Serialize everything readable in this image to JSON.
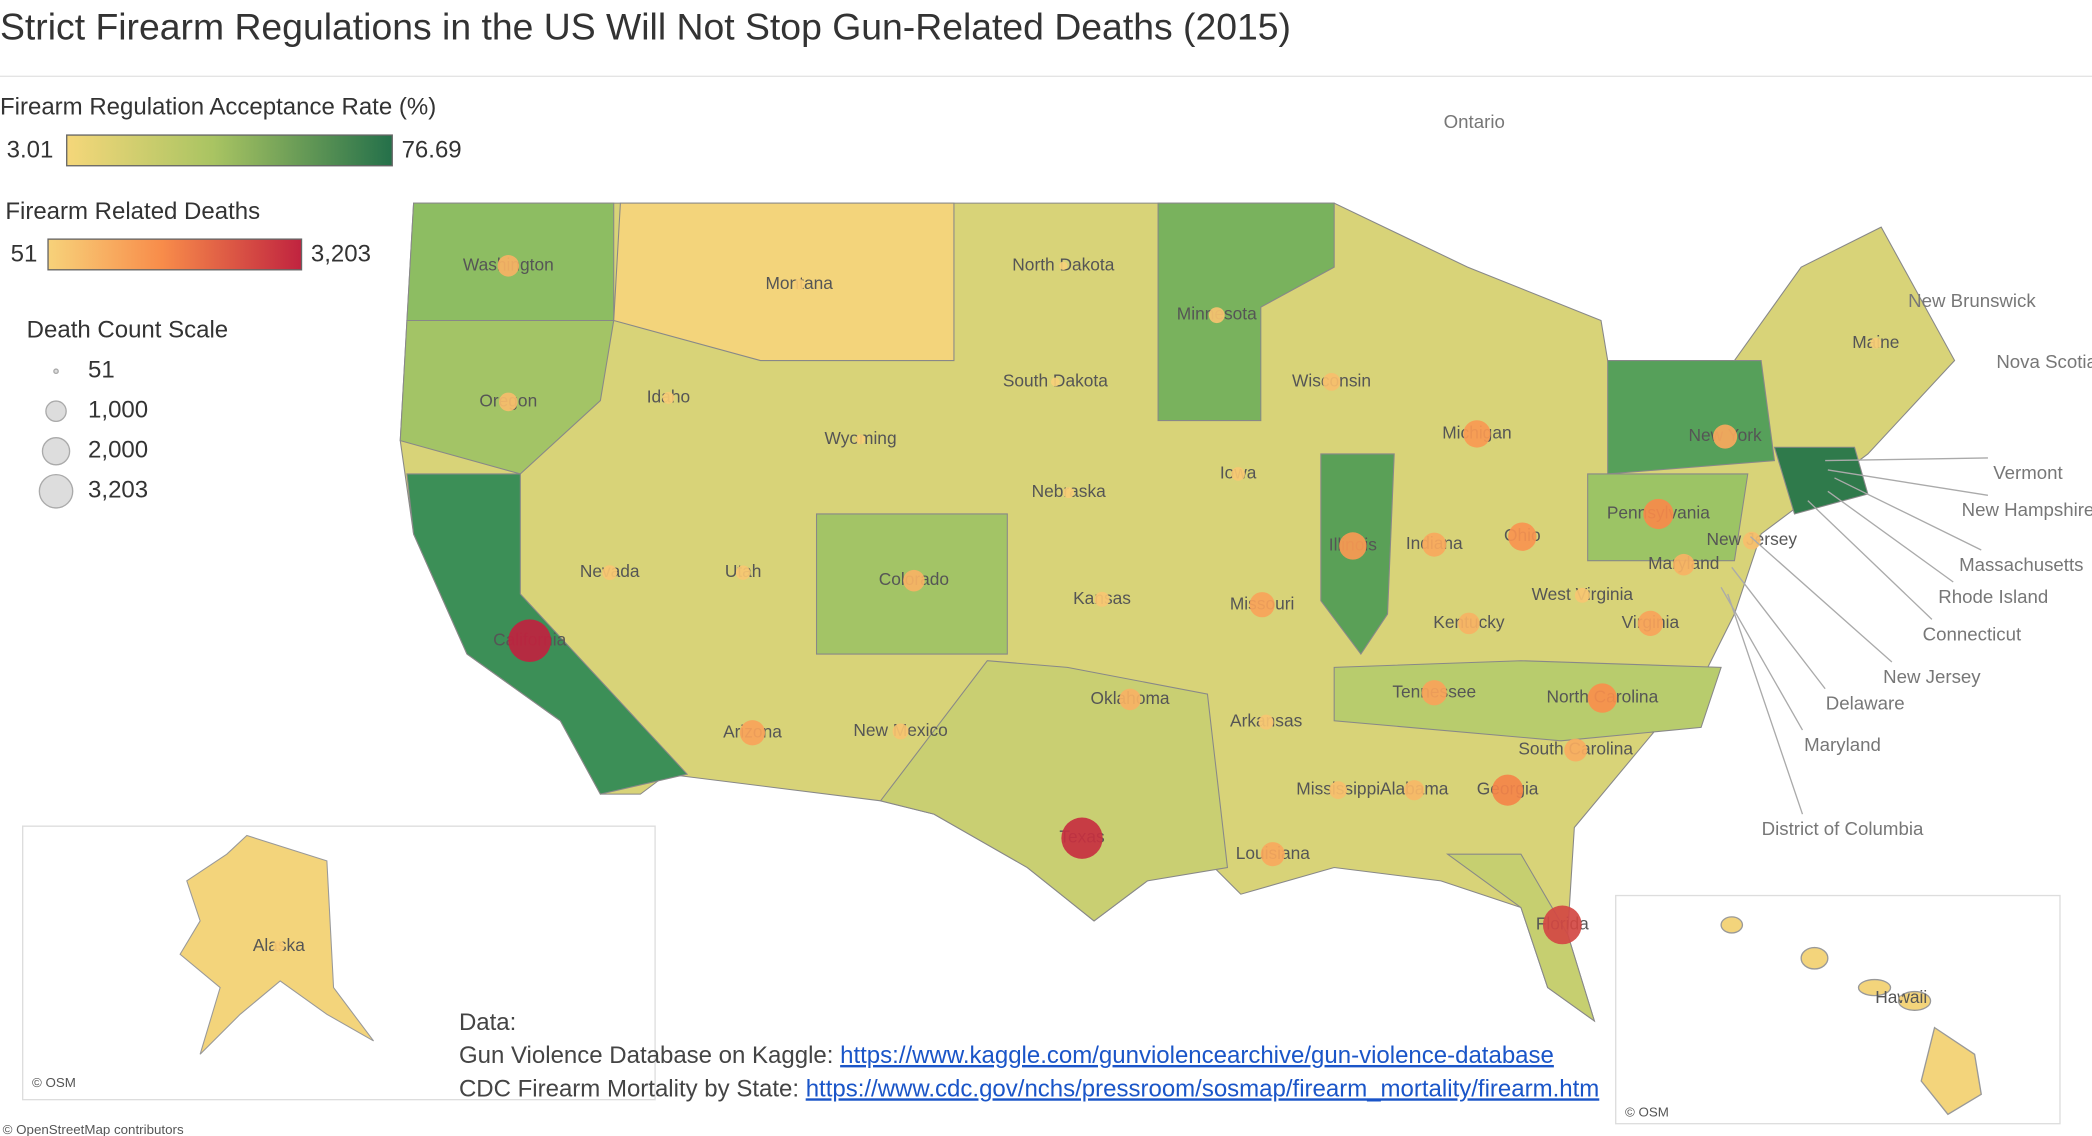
{
  "title": "Strict  Firearm Regulations in the US Will Not Stop Gun-Related Deaths (2015)",
  "color_legend": {
    "title": "Firearm Regulation Acceptance Rate (%)",
    "min": 3.01,
    "max": 76.69
  },
  "death_legend": {
    "title": "Firearm Related Deaths",
    "min": 51,
    "max": {
      "value": 3203,
      "label": "3,203"
    }
  },
  "size_legend": {
    "title": "Death Count Scale",
    "items": [
      51,
      {
        "value": 1000,
        "label": "1,000"
      },
      {
        "value": 2000,
        "label": "2,000"
      },
      {
        "value": 3203,
        "label": "3,203"
      }
    ]
  },
  "states": [
    {
      "name": "Washington",
      "deaths": 700
    },
    {
      "name": "Oregon",
      "deaths": 500
    },
    {
      "name": "California",
      "deaths": 3203
    },
    {
      "name": "Nevada",
      "deaths": 300
    },
    {
      "name": "Idaho",
      "deaths": 180
    },
    {
      "name": "Montana",
      "deaths": 150
    },
    {
      "name": "Wyoming",
      "deaths": 120
    },
    {
      "name": "Utah",
      "deaths": 280
    },
    {
      "name": "Arizona",
      "deaths": 1000
    },
    {
      "name": "Colorado",
      "deaths": 700
    },
    {
      "name": "New Mexico",
      "deaths": 350
    },
    {
      "name": "North Dakota",
      "deaths": 90
    },
    {
      "name": "South Dakota",
      "deaths": 100
    },
    {
      "name": "Nebraska",
      "deaths": 150
    },
    {
      "name": "Kansas",
      "deaths": 300
    },
    {
      "name": "Oklahoma",
      "deaths": 700
    },
    {
      "name": "Texas",
      "deaths": 2985
    },
    {
      "name": "Minnesota",
      "deaths": 350
    },
    {
      "name": "Iowa",
      "deaths": 250
    },
    {
      "name": "Missouri",
      "deaths": 1000
    },
    {
      "name": "Arkansas",
      "deaths": 300
    },
    {
      "name": "Louisiana",
      "deaths": 900
    },
    {
      "name": "Wisconsin",
      "deaths": 450
    },
    {
      "name": "Illinois",
      "deaths": 1200
    },
    {
      "name": "Michigan",
      "deaths": 1200
    },
    {
      "name": "Indiana",
      "deaths": 900
    },
    {
      "name": "Ohio",
      "deaths": 1300
    },
    {
      "name": "Kentucky",
      "deaths": 700
    },
    {
      "name": "Tennessee",
      "deaths": 1000
    },
    {
      "name": "Mississippi",
      "deaths": 450
    },
    {
      "name": "Alabama",
      "deaths": 600
    },
    {
      "name": "Georgia",
      "deaths": 1600
    },
    {
      "name": "Florida",
      "deaths": 2600
    },
    {
      "name": "South Carolina",
      "deaths": 800
    },
    {
      "name": "North Carolina",
      "deaths": 1400
    },
    {
      "name": "Virginia",
      "deaths": 1000
    },
    {
      "name": "West Virginia",
      "deaths": 300
    },
    {
      "name": "Pennsylvania",
      "deaths": 1500
    },
    {
      "name": "New York",
      "deaths": 900
    },
    {
      "name": "Maine",
      "deaths": 150
    },
    {
      "name": "Maryland",
      "deaths": 700
    },
    {
      "name": "New Jersey",
      "deaths": 450
    },
    {
      "name": "Hawaii",
      "deaths": 51
    },
    {
      "name": "Alaska",
      "deaths": 170
    }
  ],
  "neighbors": [
    "Ontario",
    "New Brunswick",
    "Nova Scotia"
  ],
  "callouts": [
    "Vermont",
    "New Hampshire",
    "Massachusetts",
    "Rhode Island",
    "Connecticut",
    "New Jersey",
    "Delaware",
    "Maryland",
    "District of Columbia"
  ],
  "sources": {
    "heading": "Data:",
    "line1": "Gun Violence Database on Kaggle: ",
    "link1": "https://www.kaggle.com/gunviolencearchive/gun-violence-database",
    "line2": "CDC Firearm Mortality by State: ",
    "link2": "https://www.cdc.gov/nchs/pressroom/sosmap/firearm_mortality/firearm.htm"
  },
  "credits": {
    "osm": "© OSM",
    "osm_full": "© OpenStreetMap contributors"
  }
}
